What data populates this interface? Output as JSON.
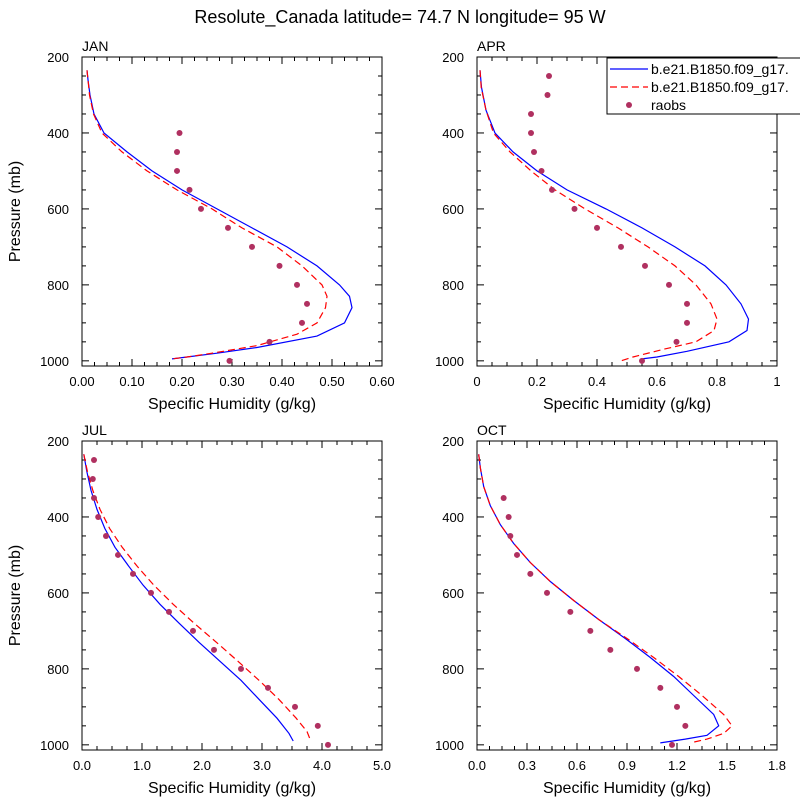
{
  "figure": {
    "title": "Resolute_Canada  latitude= 74.7 N longitude= 95 W"
  },
  "legend": {
    "entries": [
      {
        "label": "b.e21.B1850.f09_g17.",
        "style": "solid",
        "color": "#0000ff"
      },
      {
        "label": "b.e21.B1850.f09_g17.",
        "style": "dashed",
        "color": "#ff0000"
      },
      {
        "label": "raobs",
        "style": "marker",
        "color": "#b03060"
      }
    ]
  },
  "chart_data": [
    {
      "type": "line",
      "panel": "JAN",
      "xlabel": "Specific Humidity (g/kg)",
      "ylabel": "Pressure (mb)",
      "xlim": [
        0,
        0.6
      ],
      "ylim": [
        1000,
        200
      ],
      "y_axis_inverted": true,
      "xticks": [
        0,
        0.1,
        0.2,
        0.3,
        0.4,
        0.5,
        0.6
      ],
      "xtick_labels": [
        "0.00",
        "0.10",
        "0.20",
        "0.30",
        "0.40",
        "0.50",
        "0.60"
      ],
      "yticks": [
        200,
        400,
        600,
        800,
        1000
      ],
      "ytick_labels": [
        "200",
        "400",
        "600",
        "800",
        "1000"
      ],
      "series": [
        {
          "style": "solid",
          "color": "#0000ff",
          "points": [
            [
              0.01,
              235
            ],
            [
              0.012,
              260
            ],
            [
              0.016,
              300
            ],
            [
              0.024,
              350
            ],
            [
              0.044,
              400
            ],
            [
              0.09,
              450
            ],
            [
              0.14,
              500
            ],
            [
              0.2,
              550
            ],
            [
              0.27,
              600
            ],
            [
              0.34,
              650
            ],
            [
              0.41,
              700
            ],
            [
              0.47,
              750
            ],
            [
              0.515,
              800
            ],
            [
              0.535,
              830
            ],
            [
              0.54,
              860
            ],
            [
              0.525,
              900
            ],
            [
              0.47,
              935
            ],
            [
              0.35,
              965
            ],
            [
              0.27,
              980
            ],
            [
              0.21,
              990
            ],
            [
              0.18,
              995
            ]
          ]
        },
        {
          "style": "dashed",
          "color": "#ff0000",
          "points": [
            [
              0.01,
              235
            ],
            [
              0.012,
              260
            ],
            [
              0.015,
              300
            ],
            [
              0.023,
              350
            ],
            [
              0.04,
              400
            ],
            [
              0.08,
              450
            ],
            [
              0.13,
              500
            ],
            [
              0.19,
              550
            ],
            [
              0.26,
              600
            ],
            [
              0.32,
              650
            ],
            [
              0.39,
              700
            ],
            [
              0.44,
              750
            ],
            [
              0.48,
              800
            ],
            [
              0.49,
              830
            ],
            [
              0.487,
              860
            ],
            [
              0.47,
              900
            ],
            [
              0.43,
              930
            ],
            [
              0.35,
              960
            ],
            [
              0.26,
              980
            ],
            [
              0.21,
              990
            ],
            [
              0.18,
              995
            ]
          ]
        },
        {
          "style": "marker",
          "color": "#b03060",
          "points": [
            [
              0.195,
              400
            ],
            [
              0.19,
              450
            ],
            [
              0.19,
              500
            ],
            [
              0.215,
              550
            ],
            [
              0.238,
              600
            ],
            [
              0.292,
              650
            ],
            [
              0.34,
              700
            ],
            [
              0.395,
              750
            ],
            [
              0.43,
              800
            ],
            [
              0.45,
              850
            ],
            [
              0.44,
              900
            ],
            [
              0.375,
              950
            ],
            [
              0.295,
              1000
            ]
          ]
        }
      ]
    },
    {
      "type": "line",
      "panel": "APR",
      "xlabel": "Specific Humidity (g/kg)",
      "ylabel": "",
      "xlim": [
        0,
        1.0
      ],
      "ylim": [
        1000,
        200
      ],
      "y_axis_inverted": true,
      "xticks": [
        0,
        0.2,
        0.4,
        0.6,
        0.8,
        1.0
      ],
      "xtick_labels": [
        "0",
        "0.2",
        "0.4",
        "0.6",
        "0.8",
        "1"
      ],
      "yticks": [
        200,
        400,
        600,
        800,
        1000
      ],
      "ytick_labels": [
        "200",
        "400",
        "600",
        "800",
        "1000"
      ],
      "series": [
        {
          "style": "solid",
          "color": "#0000ff",
          "points": [
            [
              0.01,
              235
            ],
            [
              0.015,
              280
            ],
            [
              0.03,
              340
            ],
            [
              0.06,
              400
            ],
            [
              0.12,
              450
            ],
            [
              0.2,
              500
            ],
            [
              0.3,
              550
            ],
            [
              0.43,
              600
            ],
            [
              0.55,
              650
            ],
            [
              0.66,
              700
            ],
            [
              0.76,
              750
            ],
            [
              0.83,
              800
            ],
            [
              0.88,
              850
            ],
            [
              0.905,
              890
            ],
            [
              0.9,
              920
            ],
            [
              0.84,
              950
            ],
            [
              0.7,
              975
            ],
            [
              0.6,
              990
            ],
            [
              0.55,
              995
            ]
          ]
        },
        {
          "style": "dashed",
          "color": "#ff0000",
          "points": [
            [
              0.01,
              235
            ],
            [
              0.014,
              280
            ],
            [
              0.03,
              340
            ],
            [
              0.055,
              400
            ],
            [
              0.11,
              450
            ],
            [
              0.18,
              500
            ],
            [
              0.26,
              550
            ],
            [
              0.36,
              600
            ],
            [
              0.47,
              650
            ],
            [
              0.57,
              700
            ],
            [
              0.66,
              750
            ],
            [
              0.73,
              800
            ],
            [
              0.78,
              850
            ],
            [
              0.8,
              890
            ],
            [
              0.79,
              920
            ],
            [
              0.73,
              950
            ],
            [
              0.62,
              970
            ],
            [
              0.52,
              990
            ],
            [
              0.48,
              1000
            ]
          ]
        },
        {
          "style": "marker",
          "color": "#b03060",
          "points": [
            [
              0.24,
              250
            ],
            [
              0.235,
              300
            ],
            [
              0.18,
              350
            ],
            [
              0.18,
              400
            ],
            [
              0.19,
              450
            ],
            [
              0.215,
              500
            ],
            [
              0.25,
              550
            ],
            [
              0.325,
              600
            ],
            [
              0.4,
              650
            ],
            [
              0.48,
              700
            ],
            [
              0.56,
              750
            ],
            [
              0.64,
              800
            ],
            [
              0.7,
              850
            ],
            [
              0.7,
              900
            ],
            [
              0.665,
              950
            ],
            [
              0.55,
              1000
            ]
          ]
        }
      ]
    },
    {
      "type": "line",
      "panel": "JUL",
      "xlabel": "Specific Humidity (g/kg)",
      "ylabel": "Pressure (mb)",
      "xlim": [
        0,
        5.0
      ],
      "ylim": [
        1000,
        200
      ],
      "y_axis_inverted": true,
      "xticks": [
        0,
        1,
        2,
        3,
        4,
        5
      ],
      "xtick_labels": [
        "0.0",
        "1.0",
        "2.0",
        "3.0",
        "4.0",
        "5.0"
      ],
      "yticks": [
        200,
        400,
        600,
        800,
        1000
      ],
      "ytick_labels": [
        "200",
        "400",
        "600",
        "800",
        "1000"
      ],
      "series": [
        {
          "style": "solid",
          "color": "#0000ff",
          "points": [
            [
              0.03,
              235
            ],
            [
              0.08,
              280
            ],
            [
              0.15,
              330
            ],
            [
              0.25,
              380
            ],
            [
              0.38,
              430
            ],
            [
              0.55,
              480
            ],
            [
              0.78,
              530
            ],
            [
              1.02,
              580
            ],
            [
              1.3,
              630
            ],
            [
              1.62,
              680
            ],
            [
              1.95,
              730
            ],
            [
              2.3,
              780
            ],
            [
              2.65,
              830
            ],
            [
              2.95,
              880
            ],
            [
              3.25,
              930
            ],
            [
              3.45,
              970
            ],
            [
              3.52,
              990
            ]
          ]
        },
        {
          "style": "dashed",
          "color": "#ff0000",
          "points": [
            [
              0.03,
              235
            ],
            [
              0.09,
              280
            ],
            [
              0.18,
              330
            ],
            [
              0.3,
              380
            ],
            [
              0.46,
              430
            ],
            [
              0.67,
              480
            ],
            [
              0.92,
              530
            ],
            [
              1.2,
              580
            ],
            [
              1.52,
              630
            ],
            [
              1.87,
              680
            ],
            [
              2.24,
              730
            ],
            [
              2.6,
              780
            ],
            [
              2.95,
              830
            ],
            [
              3.28,
              880
            ],
            [
              3.57,
              930
            ],
            [
              3.75,
              965
            ],
            [
              3.8,
              985
            ]
          ]
        },
        {
          "style": "marker",
          "color": "#b03060",
          "points": [
            [
              0.2,
              250
            ],
            [
              0.18,
              300
            ],
            [
              0.2,
              350
            ],
            [
              0.27,
              400
            ],
            [
              0.4,
              450
            ],
            [
              0.6,
              500
            ],
            [
              0.85,
              550
            ],
            [
              1.15,
              600
            ],
            [
              1.45,
              650
            ],
            [
              1.85,
              700
            ],
            [
              2.2,
              750
            ],
            [
              2.65,
              800
            ],
            [
              3.1,
              850
            ],
            [
              3.55,
              900
            ],
            [
              3.93,
              950
            ],
            [
              4.1,
              1000
            ]
          ]
        }
      ]
    },
    {
      "type": "line",
      "panel": "OCT",
      "xlabel": "Specific Humidity (g/kg)",
      "ylabel": "",
      "xlim": [
        0,
        1.8
      ],
      "ylim": [
        1000,
        200
      ],
      "y_axis_inverted": true,
      "xticks": [
        0,
        0.3,
        0.6,
        0.9,
        1.2,
        1.5,
        1.8
      ],
      "xtick_labels": [
        "0.0",
        "0.3",
        "0.6",
        "0.9",
        "1.2",
        "1.5",
        "1.8"
      ],
      "yticks": [
        200,
        400,
        600,
        800,
        1000
      ],
      "ytick_labels": [
        "200",
        "400",
        "600",
        "800",
        "1000"
      ],
      "series": [
        {
          "style": "solid",
          "color": "#0000ff",
          "points": [
            [
              0.01,
              235
            ],
            [
              0.02,
              270
            ],
            [
              0.04,
              320
            ],
            [
              0.08,
              370
            ],
            [
              0.14,
              420
            ],
            [
              0.22,
              470
            ],
            [
              0.32,
              520
            ],
            [
              0.44,
              570
            ],
            [
              0.58,
              620
            ],
            [
              0.73,
              670
            ],
            [
              0.89,
              720
            ],
            [
              1.04,
              770
            ],
            [
              1.18,
              820
            ],
            [
              1.3,
              870
            ],
            [
              1.42,
              920
            ],
            [
              1.45,
              950
            ],
            [
              1.38,
              975
            ],
            [
              1.25,
              985
            ],
            [
              1.1,
              995
            ]
          ]
        },
        {
          "style": "dashed",
          "color": "#ff0000",
          "points": [
            [
              0.01,
              235
            ],
            [
              0.02,
              270
            ],
            [
              0.04,
              320
            ],
            [
              0.08,
              370
            ],
            [
              0.14,
              420
            ],
            [
              0.22,
              470
            ],
            [
              0.32,
              520
            ],
            [
              0.44,
              570
            ],
            [
              0.58,
              620
            ],
            [
              0.73,
              670
            ],
            [
              0.9,
              720
            ],
            [
              1.06,
              770
            ],
            [
              1.21,
              820
            ],
            [
              1.35,
              870
            ],
            [
              1.48,
              920
            ],
            [
              1.53,
              950
            ],
            [
              1.48,
              970
            ],
            [
              1.38,
              985
            ],
            [
              1.28,
              995
            ]
          ]
        },
        {
          "style": "marker",
          "color": "#b03060",
          "points": [
            [
              0.16,
              350
            ],
            [
              0.19,
              400
            ],
            [
              0.2,
              450
            ],
            [
              0.24,
              500
            ],
            [
              0.32,
              550
            ],
            [
              0.42,
              600
            ],
            [
              0.56,
              650
            ],
            [
              0.68,
              700
            ],
            [
              0.8,
              750
            ],
            [
              0.96,
              800
            ],
            [
              1.1,
              850
            ],
            [
              1.2,
              900
            ],
            [
              1.25,
              950
            ],
            [
              1.17,
              1000
            ]
          ]
        }
      ]
    }
  ]
}
